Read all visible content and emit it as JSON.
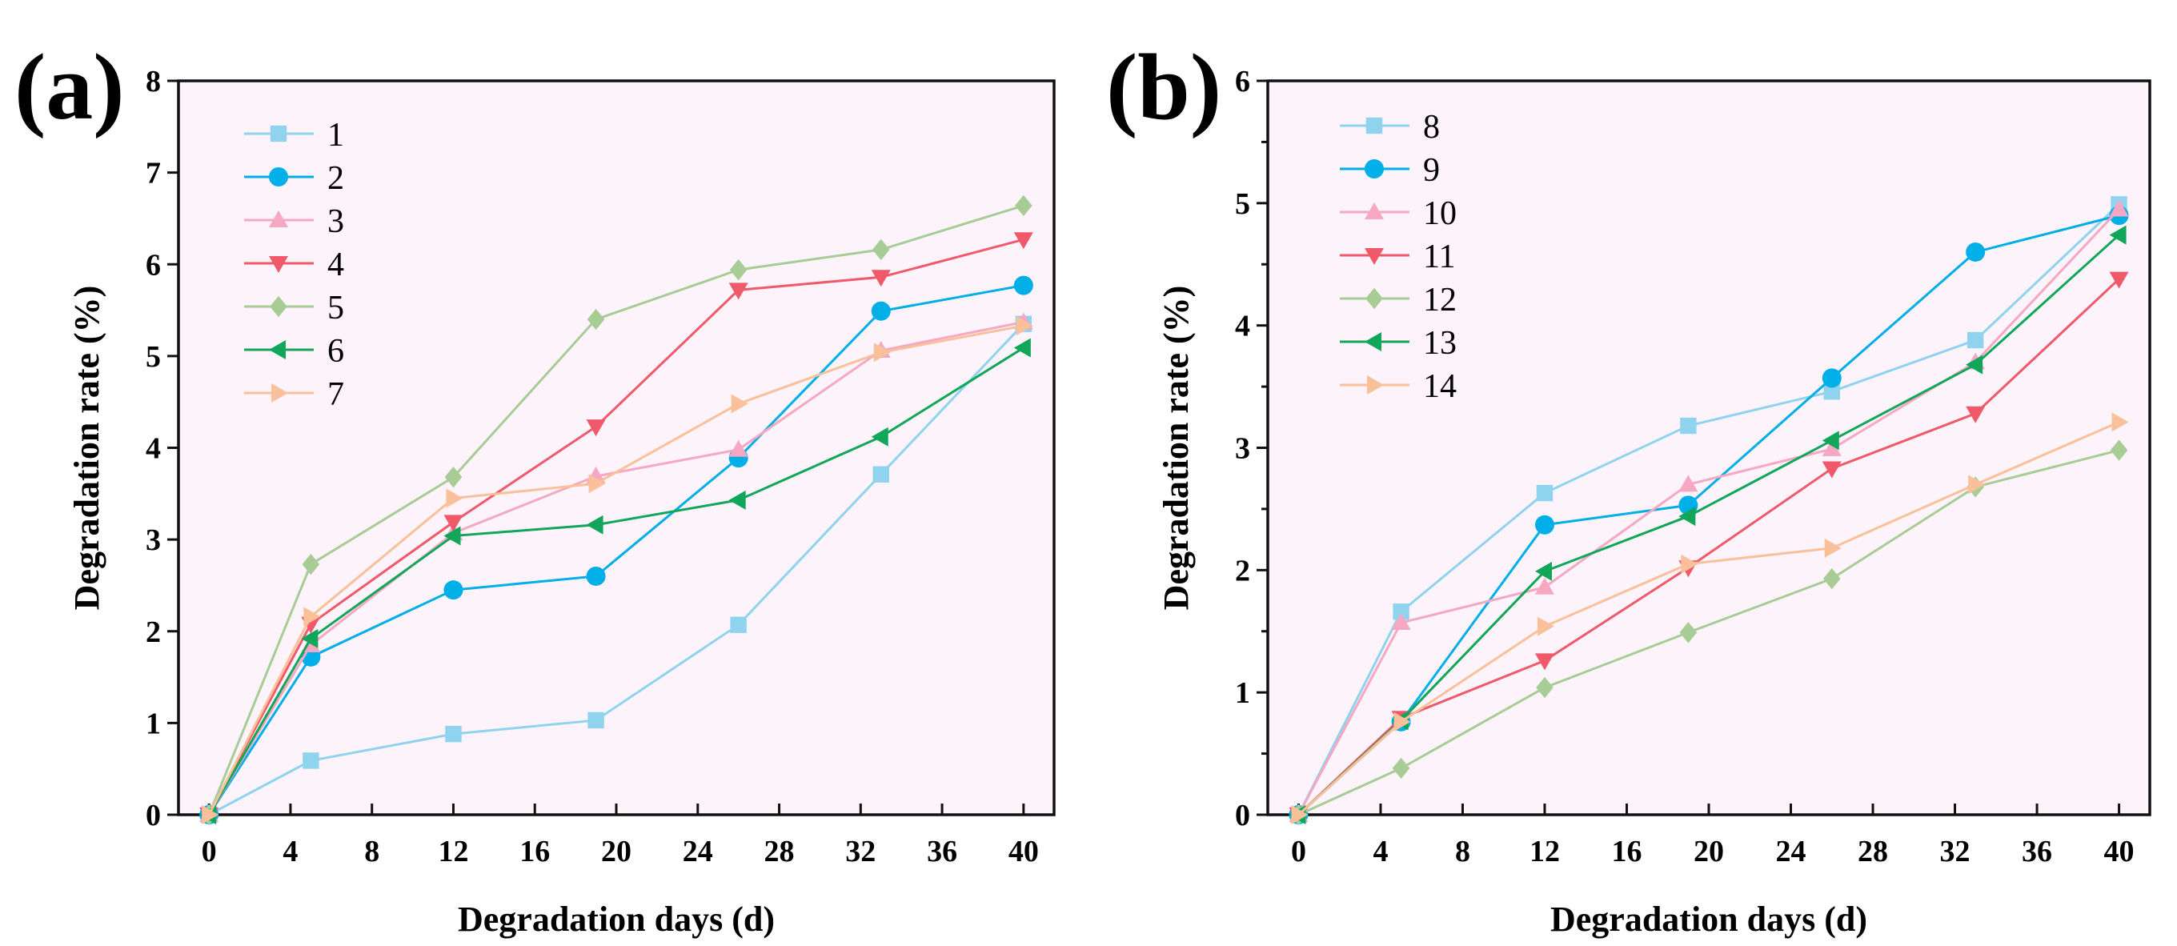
{
  "chart_data": [
    {
      "type": "line",
      "panel_label": "(a)",
      "xlabel": "Degradation days (d)",
      "ylabel": "Degradation rate (%)",
      "xlim": [
        -1.5,
        41.5
      ],
      "ylim": [
        0,
        8
      ],
      "xticks": [
        0,
        4,
        8,
        12,
        16,
        20,
        24,
        28,
        32,
        36,
        40
      ],
      "yticks": [
        0,
        1,
        2,
        3,
        4,
        5,
        6,
        7,
        8
      ],
      "yminor": false,
      "grid": false,
      "legend_position": "top-left",
      "x": [
        0,
        5,
        12,
        19,
        26,
        33,
        40
      ],
      "series": [
        {
          "name": "1",
          "color": "#8fd3ee",
          "marker": "square",
          "values": [
            0,
            0.59,
            0.88,
            1.03,
            2.07,
            3.71,
            5.35
          ]
        },
        {
          "name": "2",
          "color": "#00aee8",
          "marker": "circle",
          "values": [
            0,
            1.72,
            2.45,
            2.6,
            3.89,
            5.49,
            5.77
          ]
        },
        {
          "name": "3",
          "color": "#f6a7c1",
          "marker": "triangle-up",
          "values": [
            0,
            1.85,
            3.07,
            3.69,
            3.98,
            5.06,
            5.37
          ]
        },
        {
          "name": "4",
          "color": "#f0596a",
          "marker": "triangle-down",
          "values": [
            0,
            2.08,
            3.19,
            4.23,
            5.72,
            5.86,
            6.27
          ]
        },
        {
          "name": "5",
          "color": "#a8cc96",
          "marker": "diamond",
          "values": [
            0,
            2.73,
            3.68,
            5.4,
            5.94,
            6.16,
            6.64
          ]
        },
        {
          "name": "6",
          "color": "#12a65a",
          "marker": "triangle-left",
          "values": [
            0,
            1.92,
            3.04,
            3.16,
            3.43,
            4.12,
            5.09
          ]
        },
        {
          "name": "7",
          "color": "#f9c09a",
          "marker": "triangle-right",
          "values": [
            0,
            2.16,
            3.45,
            3.61,
            4.48,
            5.04,
            5.33
          ]
        }
      ]
    },
    {
      "type": "line",
      "panel_label": "(b)",
      "xlabel": "Degradation days (d)",
      "ylabel": "Degradation rate (%)",
      "xlim": [
        -1.5,
        41.5
      ],
      "ylim": [
        0,
        6
      ],
      "xticks": [
        0,
        4,
        8,
        12,
        16,
        20,
        24,
        28,
        32,
        36,
        40
      ],
      "yticks": [
        0,
        1,
        2,
        3,
        4,
        5,
        6
      ],
      "yminor": true,
      "grid": false,
      "legend_position": "top-left",
      "x": [
        0,
        5,
        12,
        19,
        26,
        33,
        40
      ],
      "series": [
        {
          "name": "8",
          "color": "#8fd3ee",
          "marker": "square",
          "values": [
            0,
            1.66,
            2.63,
            3.18,
            3.46,
            3.88,
            4.99
          ]
        },
        {
          "name": "9",
          "color": "#00aee8",
          "marker": "circle",
          "values": [
            0,
            0.76,
            2.37,
            2.53,
            3.57,
            4.6,
            4.9
          ]
        },
        {
          "name": "10",
          "color": "#f6a7c1",
          "marker": "triangle-up",
          "values": [
            0,
            1.57,
            1.86,
            2.7,
            2.99,
            3.7,
            4.95
          ]
        },
        {
          "name": "11",
          "color": "#f0596a",
          "marker": "triangle-down",
          "values": [
            0,
            0.79,
            1.26,
            2.02,
            2.83,
            3.28,
            4.38
          ]
        },
        {
          "name": "12",
          "color": "#a8cc96",
          "marker": "diamond",
          "values": [
            0,
            0.38,
            1.04,
            1.49,
            1.93,
            2.68,
            2.98
          ]
        },
        {
          "name": "13",
          "color": "#12a65a",
          "marker": "triangle-left",
          "values": [
            0,
            0.77,
            1.99,
            2.44,
            3.06,
            3.68,
            4.74
          ]
        },
        {
          "name": "14",
          "color": "#f9c09a",
          "marker": "triangle-right",
          "values": [
            0,
            0.76,
            1.54,
            2.05,
            2.18,
            2.7,
            3.21
          ]
        }
      ]
    }
  ],
  "colors": {
    "plot_background": "#fdf3fa",
    "axis": "#111111"
  }
}
